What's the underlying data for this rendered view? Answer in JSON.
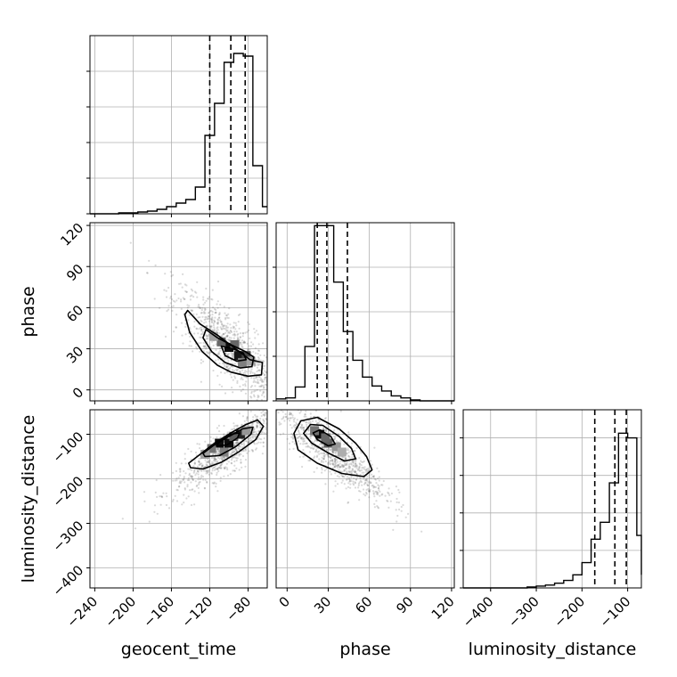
{
  "figure": {
    "type": "corner-plot"
  },
  "chart_data": [
    {
      "id": "hist-geocent_time",
      "type": "bar",
      "parameter": "geocent_time",
      "xlim": [
        -245,
        -60
      ],
      "bin_edges": [
        -245,
        -235,
        -225,
        -215,
        -205,
        -195,
        -185,
        -175,
        -165,
        -155,
        -145,
        -135,
        -125,
        -115,
        -105,
        -95,
        -85,
        -75,
        -65,
        -60
      ],
      "counts": [
        0,
        0,
        0,
        1,
        1,
        2,
        3,
        5,
        8,
        12,
        16,
        30,
        88,
        124,
        170,
        180,
        177,
        54,
        8
      ],
      "ylim": [
        0,
        200
      ],
      "y_ticks": [
        0,
        40,
        80,
        120,
        160
      ],
      "quantiles": [
        -120,
        -98,
        -83
      ]
    },
    {
      "id": "hist-phase",
      "type": "bar",
      "parameter": "phase",
      "xlim": [
        -8,
        122
      ],
      "bin_edges": [
        -8,
        -1,
        6,
        13,
        20,
        27,
        34,
        41,
        48,
        55,
        62,
        69,
        76,
        83,
        90,
        97,
        104,
        111,
        118,
        122
      ],
      "counts": [
        2,
        3,
        14,
        55,
        177,
        177,
        120,
        70,
        41,
        24,
        15,
        10,
        5,
        3,
        1,
        0,
        0,
        0,
        0
      ],
      "ylim": [
        0,
        180
      ],
      "y_ticks": [
        0,
        45,
        90,
        135
      ],
      "quantiles": [
        22,
        29,
        44
      ]
    },
    {
      "id": "hist-luminosity_distance",
      "type": "bar",
      "parameter": "luminosity_distance",
      "xlim": [
        -460,
        -70
      ],
      "bin_edges": [
        -460,
        -440,
        -420,
        -400,
        -380,
        -360,
        -340,
        -320,
        -300,
        -280,
        -260,
        -240,
        -220,
        -200,
        -180,
        -160,
        -140,
        -120,
        -100,
        -80,
        -70
      ],
      "counts": [
        0,
        0,
        0,
        0,
        0,
        0,
        0,
        1,
        2,
        3,
        5,
        8,
        14,
        27,
        52,
        70,
        112,
        165,
        160,
        56,
        14
      ],
      "ylim": [
        0,
        190
      ],
      "y_ticks": [
        0,
        40,
        80,
        120,
        160
      ],
      "quantiles": [
        -172,
        -128,
        -103
      ]
    },
    {
      "id": "scatter-phase-vs-geocent_time",
      "type": "scatter",
      "x_parameter": "geocent_time",
      "y_parameter": "phase",
      "xlim": [
        -245,
        -60
      ],
      "ylim": [
        -8,
        122
      ],
      "cloud": {
        "n": 900,
        "mean": [
          -98,
          30
        ],
        "sd_x": 30,
        "sd_y": 22,
        "rho": -0.82
      },
      "contours": [
        [
          [
            -143,
            58
          ],
          [
            -130,
            48
          ],
          [
            -112,
            40
          ],
          [
            -95,
            31
          ],
          [
            -78,
            22
          ],
          [
            -65,
            20
          ],
          [
            -66,
            11
          ],
          [
            -80,
            10
          ],
          [
            -98,
            13
          ],
          [
            -112,
            18
          ],
          [
            -128,
            28
          ],
          [
            -141,
            42
          ],
          [
            -146,
            55
          ]
        ],
        [
          [
            -124,
            44
          ],
          [
            -112,
            38
          ],
          [
            -98,
            33
          ],
          [
            -83,
            28
          ],
          [
            -74,
            24
          ],
          [
            -76,
            17
          ],
          [
            -88,
            16
          ],
          [
            -104,
            20
          ],
          [
            -118,
            28
          ],
          [
            -127,
            38
          ]
        ],
        [
          [
            -108,
            32
          ],
          [
            -96,
            30
          ],
          [
            -85,
            27
          ],
          [
            -82,
            22
          ],
          [
            -92,
            21
          ],
          [
            -104,
            25
          ]
        ]
      ],
      "density_cells": [
        {
          "x": -100,
          "y": 31,
          "level": 0.95
        },
        {
          "x": -90,
          "y": 25,
          "level": 0.9
        },
        {
          "x": -82,
          "y": 25,
          "level": 0.7
        },
        {
          "x": -108,
          "y": 35,
          "level": 0.55
        },
        {
          "x": -94,
          "y": 33,
          "level": 0.55
        },
        {
          "x": -86,
          "y": 20,
          "level": 0.45
        },
        {
          "x": -116,
          "y": 39,
          "level": 0.3
        },
        {
          "x": -77,
          "y": 21,
          "level": 0.3
        }
      ]
    },
    {
      "id": "scatter-luminosity_distance-vs-geocent_time",
      "type": "scatter",
      "x_parameter": "geocent_time",
      "y_parameter": "luminosity_distance",
      "xlim": [
        -245,
        -60
      ],
      "ylim": [
        -445,
        -45
      ],
      "cloud": {
        "n": 900,
        "mean": [
          -98,
          -130
        ],
        "sd_x": 30,
        "sd_y": 50,
        "rho": 0.87
      },
      "contours": [
        [
          [
            -140,
            -175
          ],
          [
            -127,
            -178
          ],
          [
            -108,
            -163
          ],
          [
            -90,
            -140
          ],
          [
            -72,
            -112
          ],
          [
            -64,
            -82
          ],
          [
            -70,
            -68
          ],
          [
            -82,
            -78
          ],
          [
            -98,
            -97
          ],
          [
            -115,
            -120
          ],
          [
            -130,
            -145
          ],
          [
            -142,
            -165
          ]
        ],
        [
          [
            -125,
            -150
          ],
          [
            -110,
            -148
          ],
          [
            -93,
            -128
          ],
          [
            -77,
            -100
          ],
          [
            -75,
            -84
          ],
          [
            -86,
            -88
          ],
          [
            -100,
            -105
          ],
          [
            -116,
            -125
          ],
          [
            -127,
            -143
          ]
        ],
        [
          [
            -113,
            -126
          ],
          [
            -102,
            -124
          ],
          [
            -91,
            -108
          ],
          [
            -89,
            -97
          ],
          [
            -98,
            -100
          ],
          [
            -108,
            -112
          ]
        ]
      ],
      "density_cells": [
        {
          "x": -110,
          "y": -120,
          "level": 0.95
        },
        {
          "x": -100,
          "y": -120,
          "level": 0.95
        },
        {
          "x": -88,
          "y": -100,
          "level": 0.85
        },
        {
          "x": -95,
          "y": -105,
          "level": 0.6
        },
        {
          "x": -118,
          "y": -132,
          "level": 0.5
        },
        {
          "x": -105,
          "y": -140,
          "level": 0.45
        },
        {
          "x": -82,
          "y": -92,
          "level": 0.35
        },
        {
          "x": -125,
          "y": -145,
          "level": 0.3
        }
      ]
    },
    {
      "id": "scatter-luminosity_distance-vs-phase",
      "type": "scatter",
      "x_parameter": "phase",
      "y_parameter": "luminosity_distance",
      "xlim": [
        -8,
        122
      ],
      "ylim": [
        -445,
        -45
      ],
      "cloud": {
        "n": 900,
        "mean": [
          32,
          -135
        ],
        "sd_x": 20,
        "sd_y": 55,
        "rho": -0.85
      },
      "contours": [
        [
          [
            5,
            -98
          ],
          [
            10,
            -70
          ],
          [
            22,
            -62
          ],
          [
            38,
            -88
          ],
          [
            50,
            -120
          ],
          [
            58,
            -150
          ],
          [
            62,
            -180
          ],
          [
            56,
            -195
          ],
          [
            40,
            -188
          ],
          [
            22,
            -165
          ],
          [
            8,
            -135
          ]
        ],
        [
          [
            12,
            -98
          ],
          [
            17,
            -78
          ],
          [
            26,
            -80
          ],
          [
            38,
            -105
          ],
          [
            47,
            -132
          ],
          [
            50,
            -155
          ],
          [
            42,
            -160
          ],
          [
            30,
            -142
          ],
          [
            18,
            -120
          ]
        ],
        [
          [
            19,
            -97
          ],
          [
            24,
            -90
          ],
          [
            32,
            -105
          ],
          [
            35,
            -122
          ],
          [
            30,
            -126
          ],
          [
            22,
            -112
          ]
        ]
      ],
      "density_cells": [
        {
          "x": 24,
          "y": -100,
          "level": 0.95
        },
        {
          "x": 30,
          "y": -120,
          "level": 0.6
        },
        {
          "x": 28,
          "y": -108,
          "level": 0.55
        },
        {
          "x": 36,
          "y": -128,
          "level": 0.35
        },
        {
          "x": 20,
          "y": -92,
          "level": 0.5
        },
        {
          "x": 40,
          "y": -140,
          "level": 0.25
        }
      ]
    }
  ],
  "axes": {
    "x_labels": [
      "geocent_time",
      "phase",
      "luminosity_distance"
    ],
    "y_labels": [
      "phase",
      "luminosity_distance"
    ],
    "geocent_time_ticks": [
      "−240",
      "−200",
      "−160",
      "−120",
      "−80"
    ],
    "geocent_time_tick_values": [
      -240,
      -200,
      -160,
      -120,
      -80
    ],
    "phase_ticks": [
      "0",
      "30",
      "60",
      "90",
      "120"
    ],
    "phase_tick_values": [
      0,
      30,
      60,
      90,
      120
    ],
    "luminosity_distance_ticks": [
      "−400",
      "−300",
      "−200",
      "−100"
    ],
    "luminosity_distance_tick_values": [
      -400,
      -300,
      -200,
      -100
    ]
  }
}
